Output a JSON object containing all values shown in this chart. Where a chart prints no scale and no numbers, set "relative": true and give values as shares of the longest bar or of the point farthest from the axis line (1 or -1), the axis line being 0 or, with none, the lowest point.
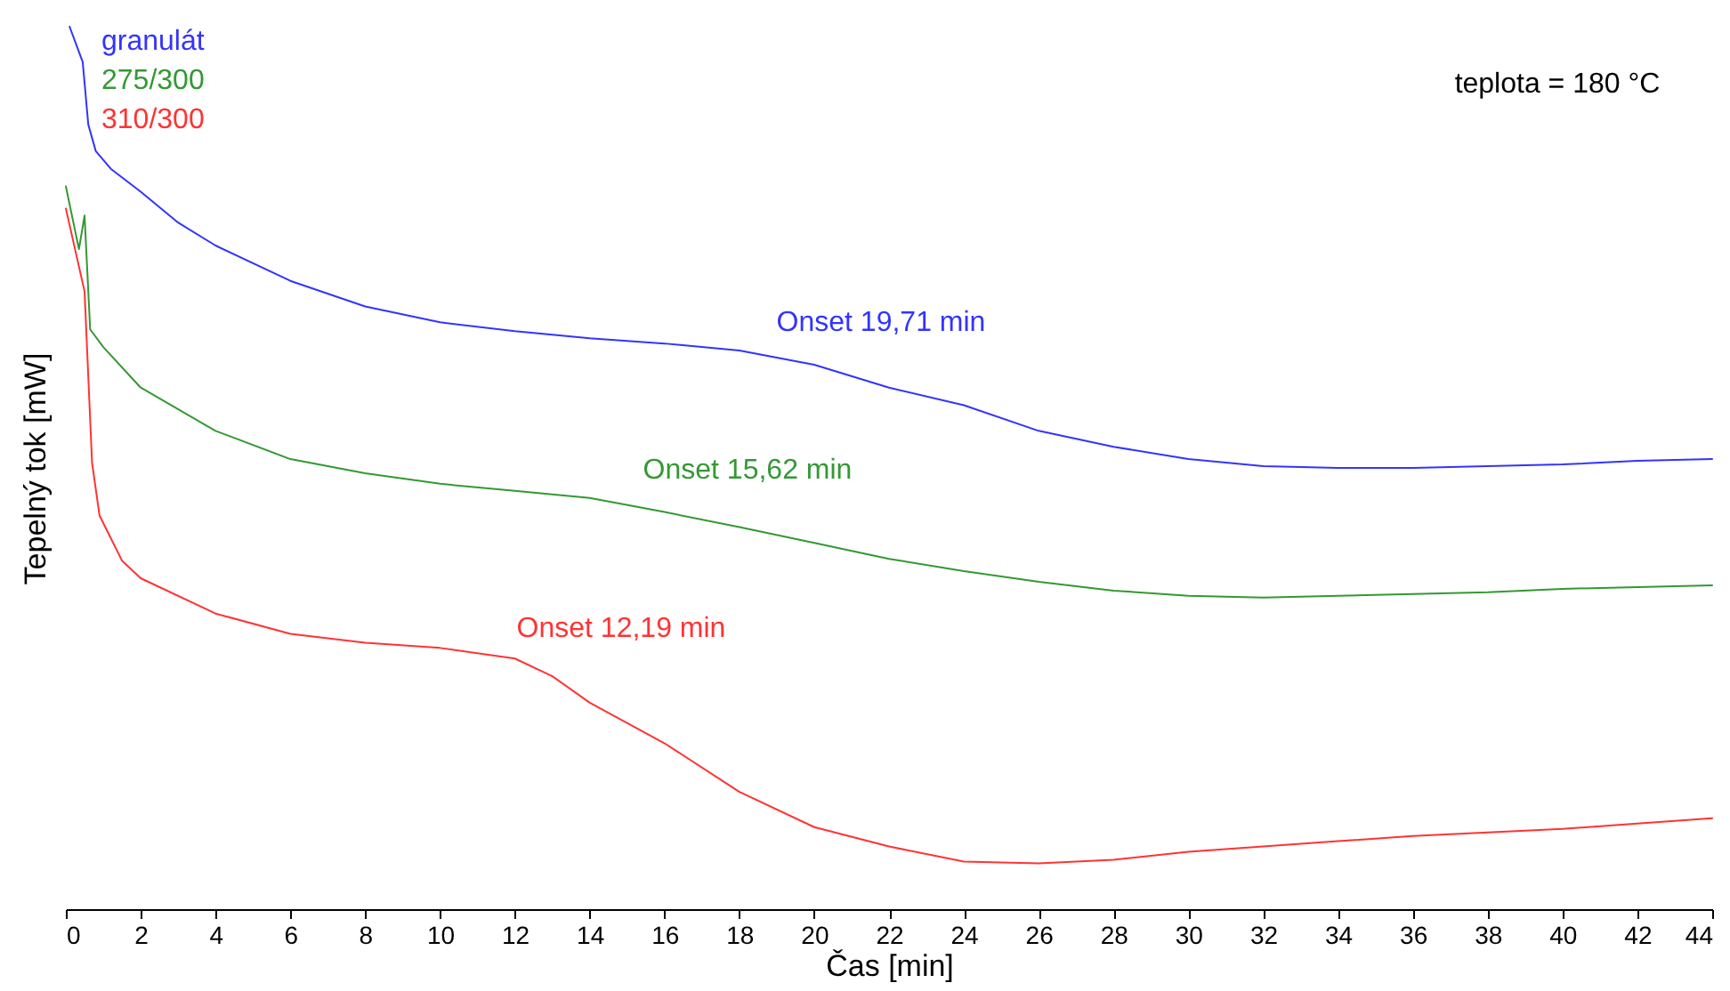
{
  "chart_data": {
    "type": "line",
    "xlabel": "Čas [min]",
    "ylabel": "Tepelný tok [mW]",
    "relative": true,
    "legend": "top left",
    "xlim": [
      0,
      44
    ],
    "xticks": [
      0,
      2,
      4,
      6,
      8,
      10,
      12,
      14,
      16,
      18,
      20,
      22,
      24,
      26,
      28,
      30,
      32,
      34,
      36,
      38,
      40,
      42,
      44
    ],
    "line_style": "solid",
    "series": [
      {
        "name": "granulát",
        "color": "#3333ff",
        "x": [
          0.1,
          0.45,
          0.6,
          0.8,
          1.2,
          2,
          3,
          4,
          6,
          8,
          10,
          12,
          14,
          16,
          18,
          20,
          22,
          24,
          26,
          28,
          30,
          32,
          34,
          36,
          38,
          40,
          42,
          44
        ],
        "values": [
          1.0,
          0.96,
          0.889,
          0.859,
          0.839,
          0.813,
          0.778,
          0.752,
          0.712,
          0.683,
          0.665,
          0.655,
          0.647,
          0.641,
          0.633,
          0.617,
          0.591,
          0.571,
          0.542,
          0.524,
          0.51,
          0.502,
          0.5,
          0.5,
          0.502,
          0.504,
          0.508,
          0.51
        ]
      },
      {
        "name": "275/300",
        "color": "#339933",
        "x": [
          0,
          0.35,
          0.5,
          0.65,
          1,
          2,
          4,
          6,
          8,
          10,
          12,
          14,
          16,
          18,
          20,
          22,
          24,
          26,
          28,
          30,
          32,
          34,
          36,
          38,
          40,
          42,
          44
        ],
        "values": [
          0.819,
          0.748,
          0.786,
          0.657,
          0.637,
          0.591,
          0.542,
          0.51,
          0.494,
          0.482,
          0.474,
          0.466,
          0.45,
          0.433,
          0.415,
          0.397,
          0.383,
          0.371,
          0.361,
          0.355,
          0.353,
          0.355,
          0.357,
          0.359,
          0.363,
          0.365,
          0.367
        ]
      },
      {
        "name": "310/300",
        "color": "#ff3333",
        "x": [
          0,
          0.5,
          0.7,
          0.9,
          1.5,
          2,
          4,
          6,
          8,
          10,
          12,
          13,
          14,
          16,
          18,
          20,
          22,
          24,
          26,
          28,
          30,
          32,
          34,
          36,
          38,
          40,
          42,
          44
        ],
        "values": [
          0.794,
          0.7,
          0.506,
          0.446,
          0.395,
          0.375,
          0.335,
          0.312,
          0.302,
          0.296,
          0.284,
          0.264,
          0.234,
          0.188,
          0.133,
          0.093,
          0.071,
          0.054,
          0.052,
          0.056,
          0.065,
          0.071,
          0.077,
          0.083,
          0.087,
          0.091,
          0.097,
          0.103
        ]
      }
    ],
    "annotations": [
      "Onset   19,71 min",
      "Onset   15,62 min",
      "Onset   12,19 min",
      "teplota = 180 °C"
    ]
  }
}
